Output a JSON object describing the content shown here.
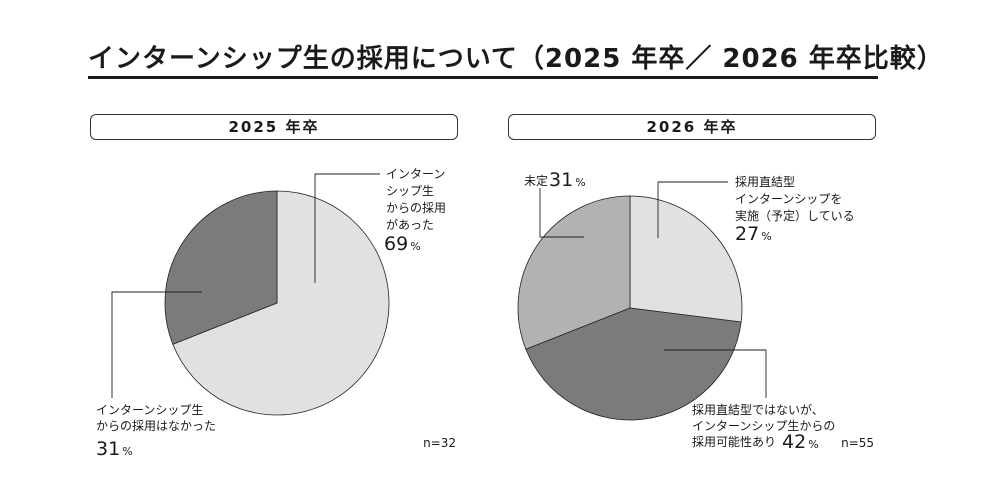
{
  "title": "インターンシップ生の採用について（2025 年卒／ 2026 年卒比較）",
  "colors": {
    "light": "#e0e1e1",
    "mid": "#b1b2b2",
    "dark": "#7b7b7b"
  },
  "chart_data": [
    {
      "type": "pie",
      "header": "2025 年卒",
      "n_label": "n=32",
      "slices": [
        {
          "label_lines": [
            "インターン",
            "シップ生",
            "からの採用",
            "があった"
          ],
          "value": 69,
          "pct_text": "69",
          "color": "#e0e1e1"
        },
        {
          "label_lines": [
            "インターンシップ生",
            "からの採用はなかった"
          ],
          "value": 31,
          "pct_text": "31",
          "color": "#7b7b7b"
        }
      ]
    },
    {
      "type": "pie",
      "header": "2026 年卒",
      "n_label": "n=55",
      "slices": [
        {
          "label_lines": [
            "採用直結型",
            "インターンシップを",
            "実施（予定）している"
          ],
          "value": 27,
          "pct_text": "27",
          "color": "#e0e1e1"
        },
        {
          "label_lines": [
            "採用直結型ではないが、",
            "インターンシップ生からの",
            "採用可能性あり"
          ],
          "value": 42,
          "pct_text": "42",
          "color": "#7b7b7b"
        },
        {
          "label_lines": [
            "未定"
          ],
          "value": 31,
          "pct_text": "31",
          "color": "#b1b2b2"
        }
      ]
    }
  ],
  "pct_sign": "%"
}
